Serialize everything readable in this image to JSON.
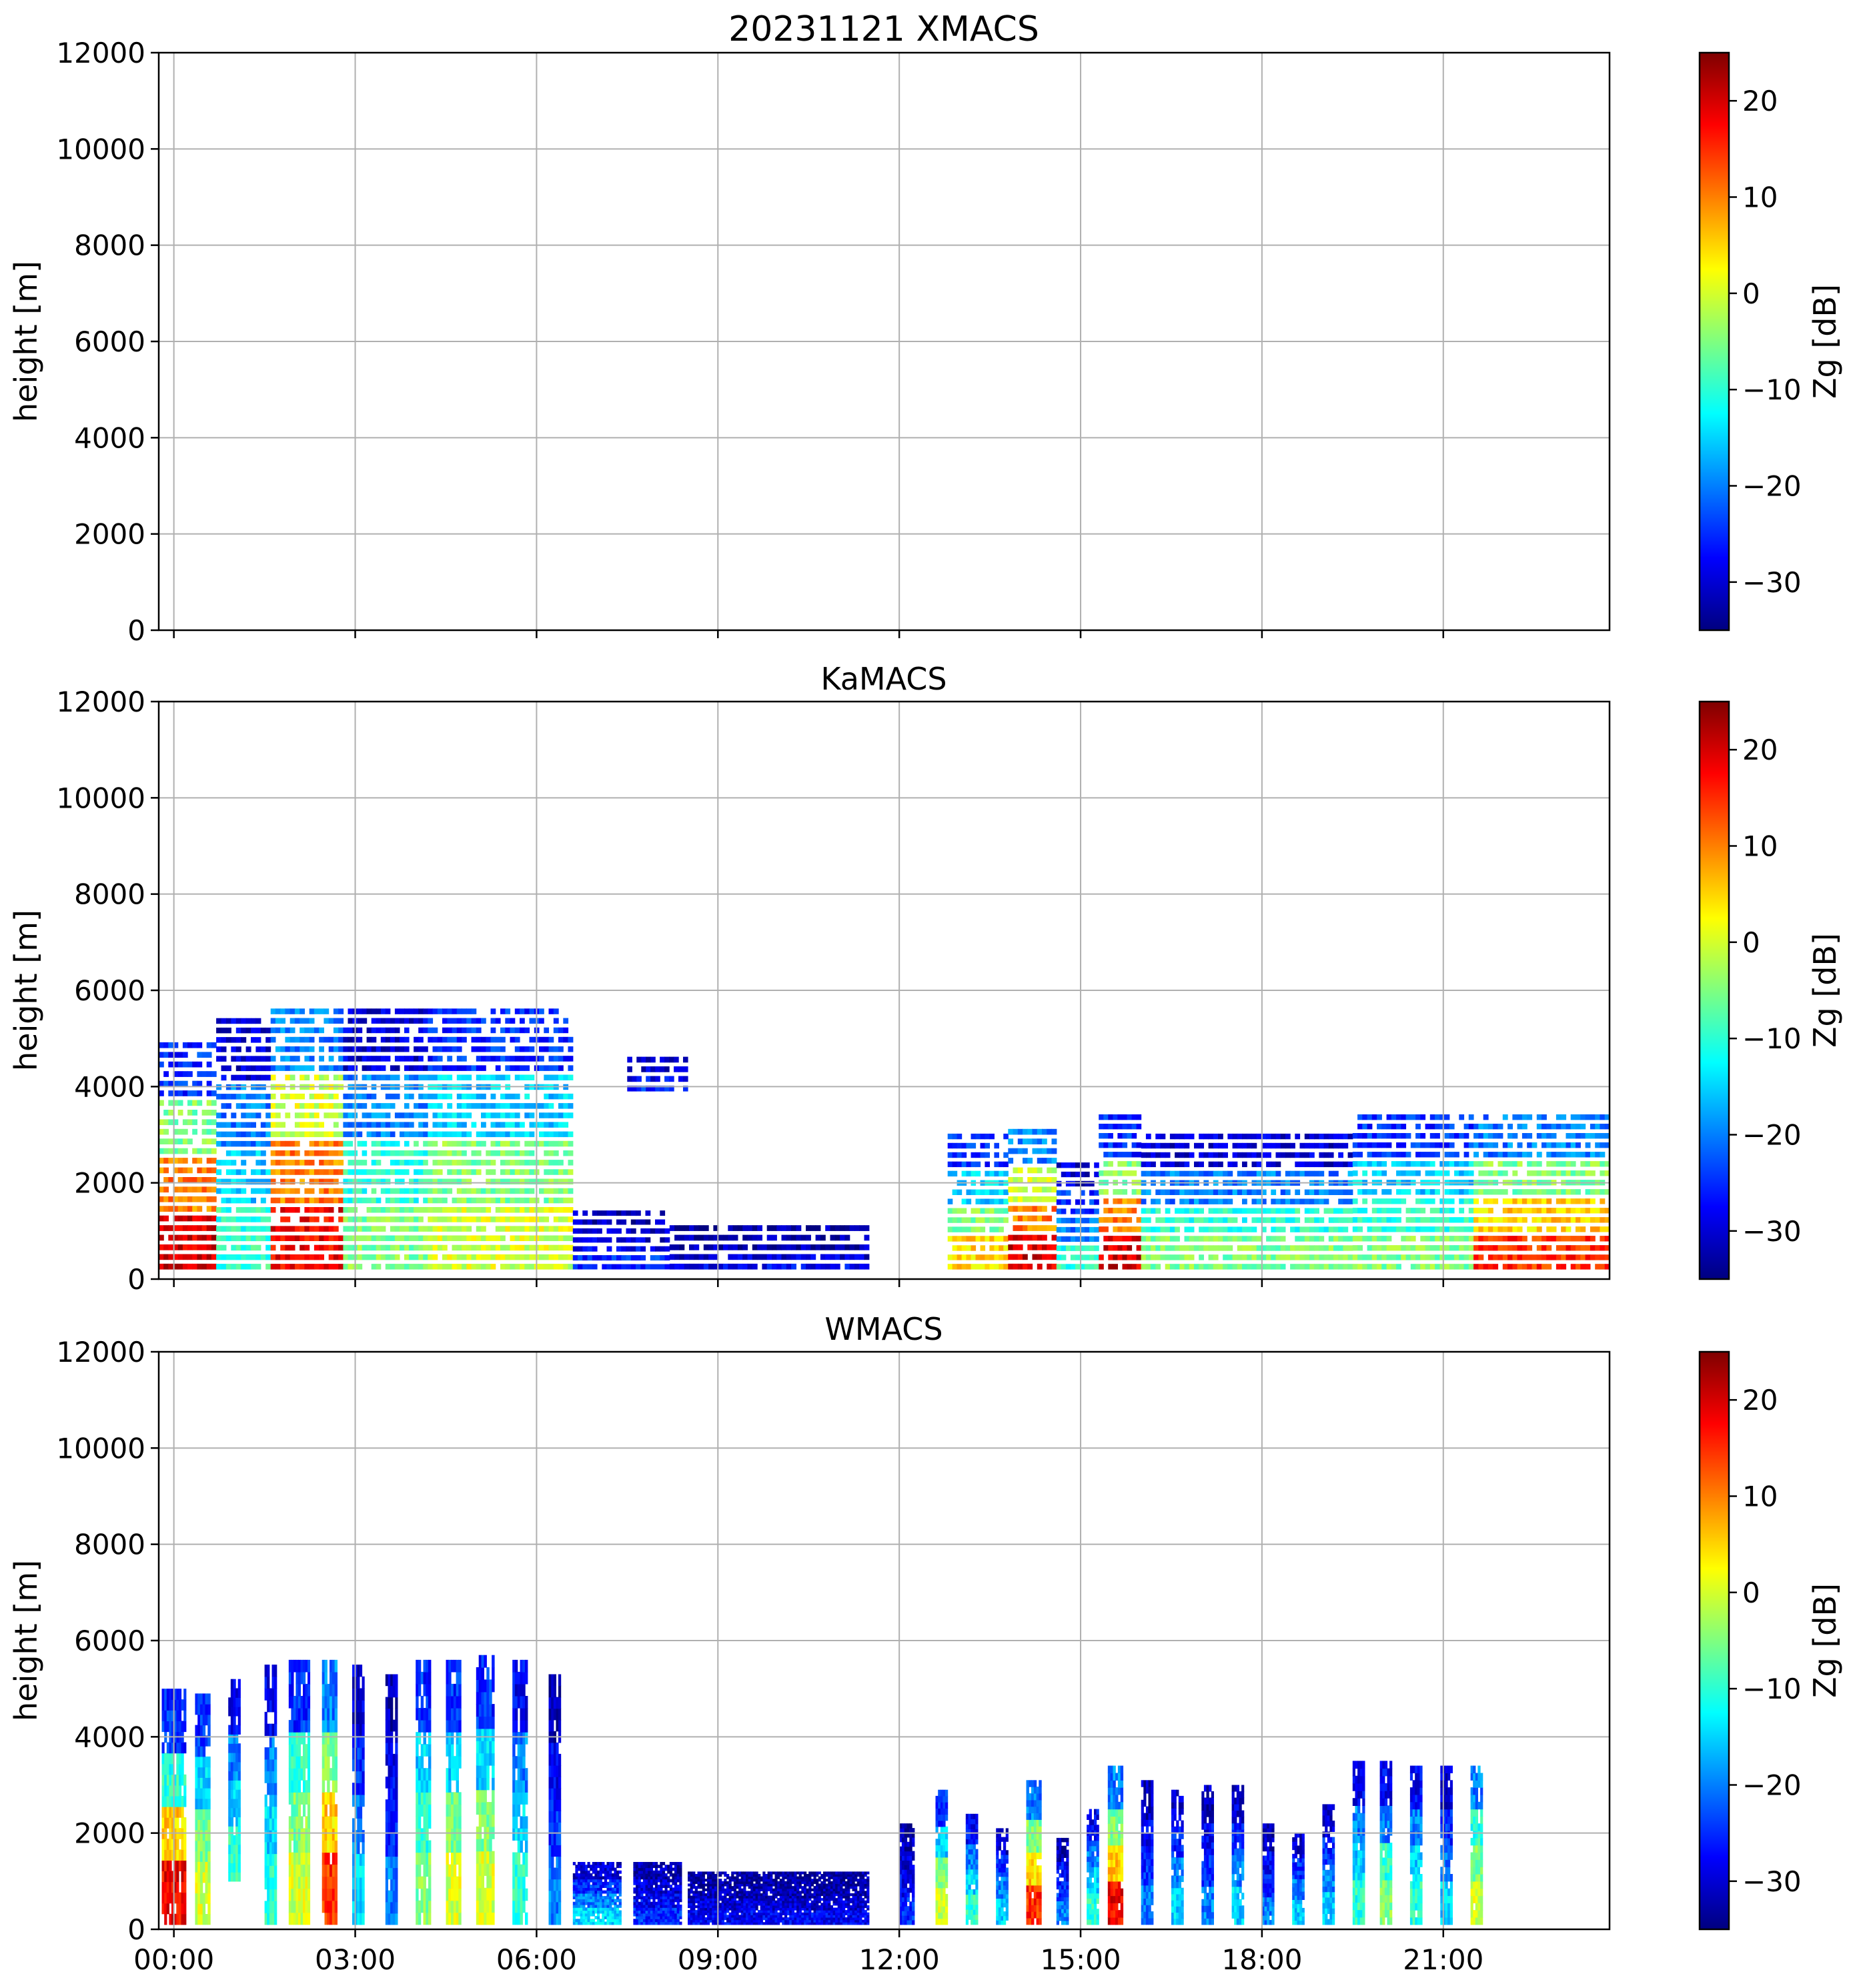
{
  "figure_title": "20231121 XMACS",
  "colormap": [
    "#00007f",
    "#0000ff",
    "#007fff",
    "#00ffff",
    "#7fff7f",
    "#ffff00",
    "#ff7f00",
    "#ff0000",
    "#7f0000"
  ],
  "chart_data": [
    {
      "type": "heatmap",
      "title": "20231121 XMACS",
      "panel": "XMACS",
      "xlabel": "",
      "ylabel": "height [m]",
      "ylim": [
        0,
        12000
      ],
      "xlim_hours": [
        -0.25,
        23.75
      ],
      "x_ticks": [
        "00:00",
        "03:00",
        "06:00",
        "09:00",
        "12:00",
        "15:00",
        "18:00",
        "21:00"
      ],
      "x_ticklabels_visible": false,
      "y_ticks": [
        0,
        2000,
        4000,
        6000,
        8000,
        10000,
        12000
      ],
      "grid": true,
      "colorbar": {
        "label": "Zg [dB]",
        "range": [
          -35,
          25
        ],
        "ticks": [
          -30,
          -20,
          -10,
          0,
          10,
          20
        ]
      },
      "echoes": []
    },
    {
      "type": "heatmap",
      "title": "KaMACS",
      "panel": "KaMACS",
      "xlabel": "",
      "ylabel": "height [m]",
      "ylim": [
        0,
        12000
      ],
      "xlim_hours": [
        -0.25,
        23.75
      ],
      "x_ticks": [
        "00:00",
        "03:00",
        "06:00",
        "09:00",
        "12:00",
        "15:00",
        "18:00",
        "21:00"
      ],
      "x_ticklabels_visible": false,
      "y_ticks": [
        0,
        2000,
        4000,
        6000,
        8000,
        10000,
        12000
      ],
      "grid": true,
      "colorbar": {
        "label": "Zg [dB]",
        "range": [
          -35,
          25
        ],
        "ticks": [
          -30,
          -20,
          -10,
          0,
          10,
          20
        ]
      },
      "echoes": [
        {
          "t0": -0.25,
          "t1": 0.7,
          "h0": 200,
          "h1": 5000,
          "zg": [
            20,
            10,
            -5,
            -25
          ]
        },
        {
          "t0": 0.7,
          "t1": 1.6,
          "h0": 200,
          "h1": 5500,
          "zg": [
            -10,
            -15,
            -20,
            -30
          ]
        },
        {
          "t0": 1.6,
          "t1": 2.8,
          "h0": 200,
          "h1": 5700,
          "zg": [
            18,
            10,
            0,
            -20
          ]
        },
        {
          "t0": 2.8,
          "t1": 4.2,
          "h0": 200,
          "h1": 5700,
          "zg": [
            -5,
            -10,
            -20,
            -30
          ]
        },
        {
          "t0": 4.2,
          "t1": 6.6,
          "h0": 200,
          "h1": 5700,
          "zg": [
            0,
            -5,
            -15,
            -25
          ]
        },
        {
          "t0": 6.6,
          "t1": 8.2,
          "h0": 200,
          "h1": 1500,
          "zg": [
            -25,
            -28,
            -30,
            -32
          ]
        },
        {
          "t0": 7.5,
          "t1": 8.5,
          "h0": 3900,
          "h1": 4700,
          "zg": [
            -25,
            -28,
            -30,
            -32
          ]
        },
        {
          "t0": 8.2,
          "t1": 11.5,
          "h0": 200,
          "h1": 1200,
          "zg": [
            -28,
            -30,
            -32,
            -33
          ]
        },
        {
          "t0": 12.8,
          "t1": 13.8,
          "h0": 200,
          "h1": 3100,
          "zg": [
            5,
            -5,
            -15,
            -25
          ]
        },
        {
          "t0": 13.8,
          "t1": 14.6,
          "h0": 200,
          "h1": 3200,
          "zg": [
            20,
            10,
            0,
            -20
          ]
        },
        {
          "t0": 14.6,
          "t1": 15.3,
          "h0": 200,
          "h1": 2500,
          "zg": [
            -10,
            -20,
            -25,
            -30
          ]
        },
        {
          "t0": 15.3,
          "t1": 16.0,
          "h0": 200,
          "h1": 3500,
          "zg": [
            20,
            10,
            -5,
            -25
          ]
        },
        {
          "t0": 16.0,
          "t1": 19.5,
          "h0": 200,
          "h1": 3100,
          "zg": [
            -5,
            -10,
            -20,
            -30
          ]
        },
        {
          "t0": 19.5,
          "t1": 21.5,
          "h0": 200,
          "h1": 3500,
          "zg": [
            -5,
            -10,
            -15,
            -25
          ]
        },
        {
          "t0": 21.5,
          "t1": 23.75,
          "h0": 200,
          "h1": 3500,
          "zg": [
            15,
            5,
            -5,
            -20
          ]
        }
      ]
    },
    {
      "type": "heatmap",
      "title": "WMACS",
      "panel": "WMACS",
      "xlabel": "",
      "ylabel": "height [m]",
      "ylim": [
        0,
        12000
      ],
      "xlim_hours": [
        -0.25,
        23.75
      ],
      "x_ticks": [
        "00:00",
        "03:00",
        "06:00",
        "09:00",
        "12:00",
        "15:00",
        "18:00",
        "21:00"
      ],
      "x_ticklabels_visible": true,
      "y_ticks": [
        0,
        2000,
        4000,
        6000,
        8000,
        10000,
        12000
      ],
      "grid": true,
      "colorbar": {
        "label": "Zg [dB]",
        "range": [
          -35,
          25
        ],
        "ticks": [
          -30,
          -20,
          -10,
          0,
          10,
          20
        ]
      },
      "echoes": [
        {
          "t0": -0.2,
          "t1": 0.2,
          "h0": 100,
          "h1": 5000,
          "zg": [
            18,
            5,
            -10,
            -25
          ]
        },
        {
          "t0": 0.35,
          "t1": 0.6,
          "h0": 100,
          "h1": 4900,
          "zg": [
            0,
            -5,
            -15,
            -25
          ]
        },
        {
          "t0": 0.9,
          "t1": 1.1,
          "h0": 1000,
          "h1": 5200,
          "zg": [
            -10,
            -15,
            -20,
            -28
          ]
        },
        {
          "t0": 1.5,
          "t1": 1.7,
          "h0": 100,
          "h1": 5500,
          "zg": [
            -10,
            -15,
            -20,
            -28
          ]
        },
        {
          "t0": 1.9,
          "t1": 2.25,
          "h0": 100,
          "h1": 5600,
          "zg": [
            0,
            -5,
            -10,
            -25
          ]
        },
        {
          "t0": 2.45,
          "t1": 2.7,
          "h0": 100,
          "h1": 5600,
          "zg": [
            15,
            5,
            -5,
            -20
          ]
        },
        {
          "t0": 2.95,
          "t1": 3.15,
          "h0": 100,
          "h1": 5500,
          "zg": [
            -15,
            -20,
            -25,
            -30
          ]
        },
        {
          "t0": 3.5,
          "t1": 3.7,
          "h0": 100,
          "h1": 5300,
          "zg": [
            -20,
            -25,
            -28,
            -32
          ]
        },
        {
          "t0": 4.0,
          "t1": 4.25,
          "h0": 100,
          "h1": 5600,
          "zg": [
            -5,
            -10,
            -15,
            -25
          ]
        },
        {
          "t0": 4.5,
          "t1": 4.75,
          "h0": 100,
          "h1": 5600,
          "zg": [
            0,
            -5,
            -15,
            -25
          ]
        },
        {
          "t0": 5.0,
          "t1": 5.3,
          "h0": 100,
          "h1": 5700,
          "zg": [
            0,
            -5,
            -15,
            -25
          ]
        },
        {
          "t0": 5.6,
          "t1": 5.85,
          "h0": 100,
          "h1": 5600,
          "zg": [
            -10,
            -15,
            -20,
            -28
          ]
        },
        {
          "t0": 6.2,
          "t1": 6.4,
          "h0": 100,
          "h1": 5300,
          "zg": [
            -20,
            -25,
            -28,
            -32
          ]
        },
        {
          "t0": 6.6,
          "t1": 7.4,
          "h0": 100,
          "h1": 1400,
          "zg": [
            -15,
            -20,
            -25,
            -30
          ]
        },
        {
          "t0": 7.6,
          "t1": 8.4,
          "h0": 100,
          "h1": 1400,
          "zg": [
            -25,
            -28,
            -30,
            -32
          ]
        },
        {
          "t0": 8.5,
          "t1": 11.5,
          "h0": 100,
          "h1": 1200,
          "zg": [
            -28,
            -30,
            -32,
            -33
          ]
        },
        {
          "t0": 12.0,
          "t1": 12.25,
          "h0": 100,
          "h1": 2200,
          "zg": [
            -25,
            -28,
            -30,
            -32
          ]
        },
        {
          "t0": 12.6,
          "t1": 12.8,
          "h0": 100,
          "h1": 2900,
          "zg": [
            0,
            -5,
            -15,
            -25
          ]
        },
        {
          "t0": 13.1,
          "t1": 13.3,
          "h0": 100,
          "h1": 2400,
          "zg": [
            -10,
            -15,
            -20,
            -28
          ]
        },
        {
          "t0": 13.6,
          "t1": 13.8,
          "h0": 100,
          "h1": 2100,
          "zg": [
            -15,
            -20,
            -25,
            -30
          ]
        },
        {
          "t0": 14.1,
          "t1": 14.35,
          "h0": 100,
          "h1": 3100,
          "zg": [
            15,
            5,
            -5,
            -20
          ]
        },
        {
          "t0": 14.6,
          "t1": 14.8,
          "h0": 100,
          "h1": 1900,
          "zg": [
            -20,
            -25,
            -28,
            -32
          ]
        },
        {
          "t0": 15.1,
          "t1": 15.3,
          "h0": 100,
          "h1": 2500,
          "zg": [
            -10,
            -15,
            -20,
            -28
          ]
        },
        {
          "t0": 15.45,
          "t1": 15.7,
          "h0": 100,
          "h1": 3400,
          "zg": [
            18,
            5,
            -5,
            -20
          ]
        },
        {
          "t0": 16.0,
          "t1": 16.2,
          "h0": 100,
          "h1": 3100,
          "zg": [
            -20,
            -25,
            -28,
            -32
          ]
        },
        {
          "t0": 16.5,
          "t1": 16.7,
          "h0": 100,
          "h1": 2900,
          "zg": [
            -15,
            -20,
            -25,
            -30
          ]
        },
        {
          "t0": 17.0,
          "t1": 17.2,
          "h0": 100,
          "h1": 3000,
          "zg": [
            -20,
            -25,
            -28,
            -32
          ]
        },
        {
          "t0": 17.5,
          "t1": 17.7,
          "h0": 100,
          "h1": 3000,
          "zg": [
            -15,
            -20,
            -25,
            -30
          ]
        },
        {
          "t0": 18.0,
          "t1": 18.2,
          "h0": 100,
          "h1": 2200,
          "zg": [
            -20,
            -25,
            -28,
            -32
          ]
        },
        {
          "t0": 18.5,
          "t1": 18.7,
          "h0": 100,
          "h1": 2000,
          "zg": [
            -15,
            -20,
            -25,
            -30
          ]
        },
        {
          "t0": 19.0,
          "t1": 19.2,
          "h0": 100,
          "h1": 2600,
          "zg": [
            -15,
            -20,
            -25,
            -30
          ]
        },
        {
          "t0": 19.5,
          "t1": 19.7,
          "h0": 100,
          "h1": 3500,
          "zg": [
            -10,
            -15,
            -20,
            -28
          ]
        },
        {
          "t0": 19.95,
          "t1": 20.15,
          "h0": 100,
          "h1": 3500,
          "zg": [
            -5,
            -10,
            -20,
            -28
          ]
        },
        {
          "t0": 20.45,
          "t1": 20.65,
          "h0": 100,
          "h1": 3400,
          "zg": [
            -10,
            -15,
            -20,
            -28
          ]
        },
        {
          "t0": 20.95,
          "t1": 21.15,
          "h0": 100,
          "h1": 3400,
          "zg": [
            -15,
            -20,
            -25,
            -30
          ]
        },
        {
          "t0": 21.45,
          "t1": 21.65,
          "h0": 100,
          "h1": 3400,
          "zg": [
            0,
            -5,
            -10,
            -20
          ]
        }
      ]
    }
  ]
}
